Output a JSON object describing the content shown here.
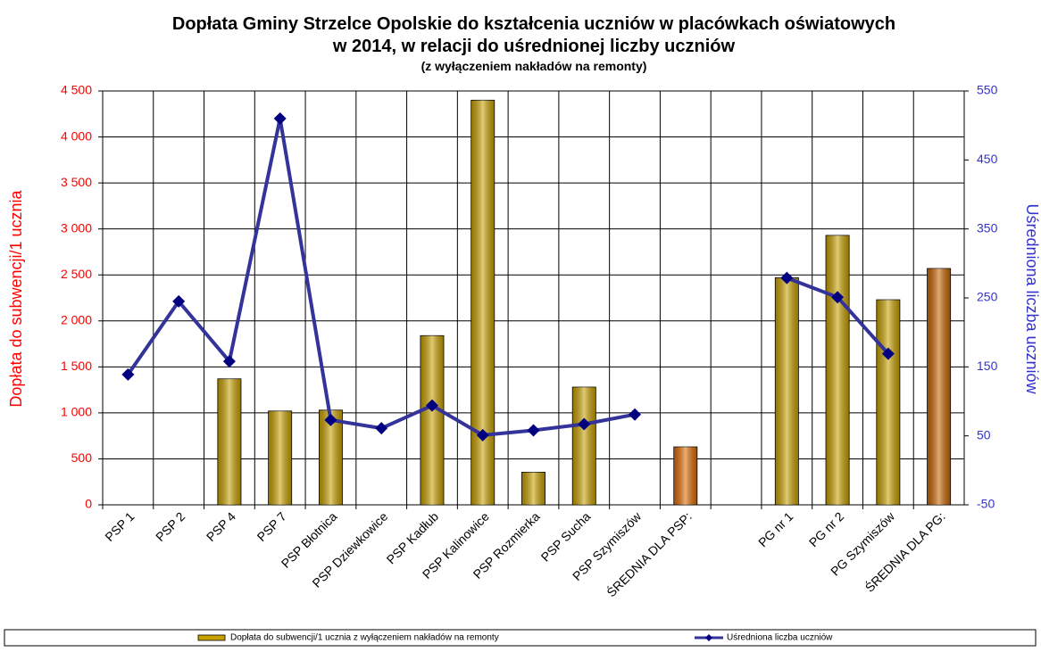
{
  "chart_data": {
    "type": "bar-line",
    "title": "Dopłata Gminy Strzelce Opolskie do kształcenia uczniów w placówkach oświatowych",
    "title_line2": "w 2014, w relacji do uśrednionej liczby uczniów",
    "subtitle": "(z wyłączeniem nakładów na remonty)",
    "y_label": "Dopłata do subwencji/1 ucznia",
    "y2_label": "Uśredniona liczba uczniów",
    "categories": [
      "PSP 1",
      "PSP 2",
      "PSP 4",
      "PSP 7",
      "PSP Błotnica",
      "PSP Dziewkowice",
      "PSP Kadłub",
      "PSP Kalinowice",
      "PSP Rozmierka",
      "PSP Sucha",
      "PSP Szymiszów",
      "ŚREDNIA DLA PSP:",
      null,
      "PG nr 1",
      "PG nr 2",
      "PG Szymiszów",
      "ŚREDNIA DLA PG:"
    ],
    "series": [
      {
        "name": "Dopłata do subwencji/1 ucznia z wyłączeniem nakładów na remonty",
        "type": "bar",
        "colors": [
          "#c8a000",
          "#c8a000",
          "#c8a000",
          "#c8a000",
          "#c8a000",
          "#c8a000",
          "#c8a000",
          "#c8a000",
          "#c8a000",
          "#c8a000",
          "#c8a000",
          "#e06a00",
          "#c8a000",
          "#c8a000",
          "#c8a000",
          "#c8a000",
          "#c86400"
        ],
        "values": [
          null,
          null,
          1370,
          1020,
          1030,
          null,
          1840,
          4400,
          355,
          1280,
          null,
          630,
          null,
          2470,
          2930,
          2230,
          2570
        ]
      },
      {
        "name": "Uśredniona liczba uczniów",
        "type": "line",
        "axis": "y2",
        "color": "#333399",
        "values": [
          139,
          245,
          158,
          510,
          73,
          61,
          94,
          51,
          58,
          67,
          81,
          null,
          null,
          279,
          251,
          169,
          null
        ]
      }
    ],
    "ylim": [
      0,
      4500
    ],
    "yticks": [
      0,
      500,
      {
        "value": 1000,
        "label": "1 000"
      },
      {
        "value": 1500,
        "label": "1 500"
      },
      {
        "value": 2000,
        "label": "2 000"
      },
      {
        "value": 2500,
        "label": "2 500"
      },
      {
        "value": 3000,
        "label": "3 000"
      },
      {
        "value": 3500,
        "label": "3 500"
      },
      {
        "value": 4000,
        "label": "4 000"
      },
      {
        "value": 4500,
        "label": "4 500"
      }
    ],
    "y2lim": [
      -50,
      550
    ],
    "y2ticks": [
      -50,
      50,
      150,
      250,
      350,
      450,
      550
    ],
    "y_color": "#ff0000",
    "y2_color": "#3333cc",
    "grid": true
  }
}
